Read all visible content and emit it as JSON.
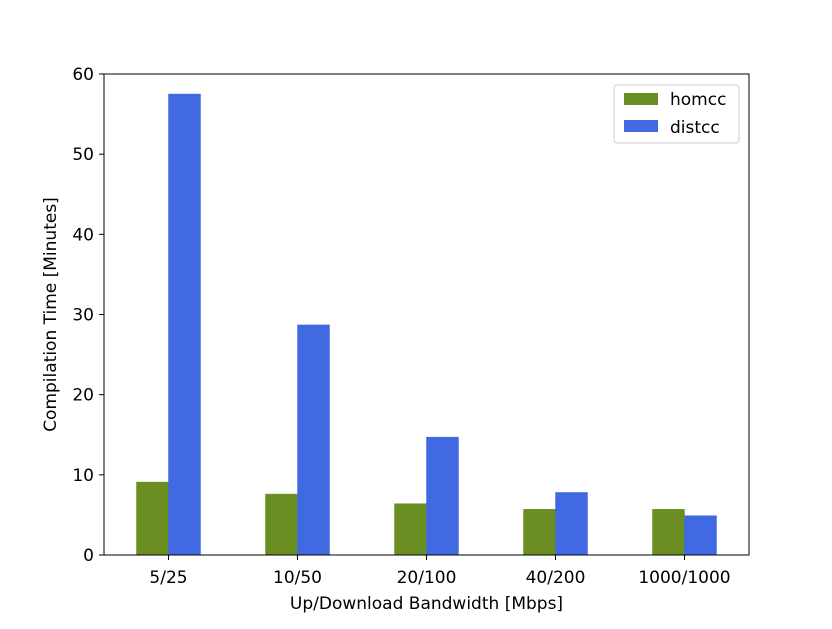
{
  "chart_data": {
    "type": "bar",
    "title": "",
    "xlabel": "Up/Download Bandwidth [Mbps]",
    "ylabel": "Compilation Time [Minutes]",
    "categories": [
      "5/25",
      "10/50",
      "20/100",
      "40/200",
      "1000/1000"
    ],
    "series": [
      {
        "name": "homcc",
        "color": "#6b8e23",
        "values": [
          9.1,
          7.6,
          6.4,
          5.7,
          5.7
        ]
      },
      {
        "name": "distcc",
        "color": "#4169e1",
        "values": [
          57.5,
          28.7,
          14.7,
          7.8,
          4.9
        ]
      }
    ],
    "ylim": [
      0,
      60
    ],
    "yticks": [
      0,
      10,
      20,
      30,
      40,
      50,
      60
    ],
    "grid": false,
    "legend_position": "top-right"
  }
}
